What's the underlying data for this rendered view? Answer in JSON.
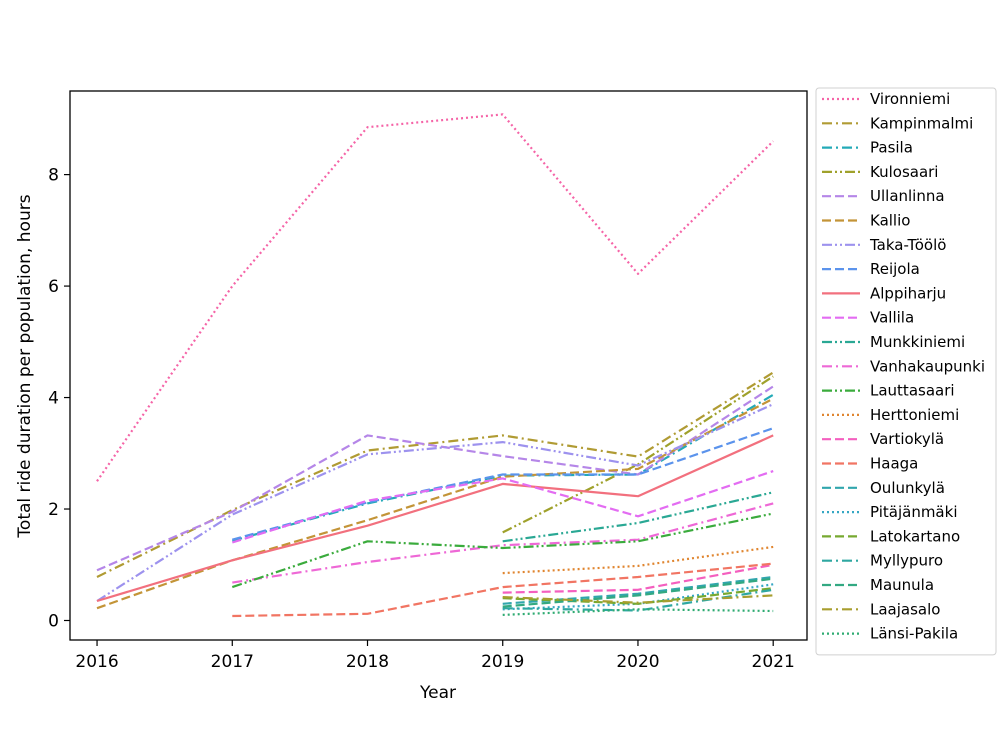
{
  "chart_data": {
    "type": "line",
    "title": "",
    "xlabel": "Year",
    "ylabel": "Total ride duration per population, hours",
    "x": [
      2016,
      2017,
      2018,
      2019,
      2020,
      2021
    ],
    "xlim": [
      2015.8,
      2021.25
    ],
    "ylim": [
      -0.35,
      9.5
    ],
    "yticks": [
      0,
      2,
      4,
      6,
      8
    ],
    "grid": false,
    "legend_position": "right-outside",
    "series": [
      {
        "name": "Vironniemi",
        "color": "#f564a7",
        "dash": "dotted",
        "values": [
          2.5,
          6.0,
          8.85,
          9.08,
          6.22,
          8.6
        ]
      },
      {
        "name": "Kampinmalmi",
        "color": "#b09b33",
        "dash": "dashdot",
        "values": [
          0.78,
          1.98,
          3.05,
          3.32,
          2.94,
          4.45
        ]
      },
      {
        "name": "Pasila",
        "color": "#23aab7",
        "dash": "dashdot",
        "values": [
          null,
          1.43,
          2.1,
          2.6,
          2.62,
          4.05
        ]
      },
      {
        "name": "Kulosaari",
        "color": "#9fa12b",
        "dash": "dashdotdot",
        "values": [
          null,
          null,
          null,
          1.58,
          2.8,
          4.38
        ]
      },
      {
        "name": "Ullanlinna",
        "color": "#b586e8",
        "dash": "dashed",
        "values": [
          0.9,
          1.95,
          3.32,
          2.95,
          2.62,
          4.2
        ]
      },
      {
        "name": "Kallio",
        "color": "#c39437",
        "dash": "dashed",
        "values": [
          0.22,
          1.08,
          1.8,
          2.58,
          2.72,
          3.98
        ]
      },
      {
        "name": "Taka-Töölö",
        "color": "#9d92ee",
        "dash": "dashdotdot",
        "values": [
          0.35,
          1.9,
          2.98,
          3.2,
          2.78,
          3.88
        ]
      },
      {
        "name": "Reijola",
        "color": "#5b93ec",
        "dash": "dashed",
        "values": [
          null,
          1.45,
          2.12,
          2.62,
          2.62,
          3.45
        ]
      },
      {
        "name": "Alppiharju",
        "color": "#f2707e",
        "dash": "solid",
        "values": [
          0.35,
          1.08,
          1.7,
          2.45,
          2.23,
          3.32
        ]
      },
      {
        "name": "Vallila",
        "color": "#e36cf2",
        "dash": "dashed",
        "values": [
          null,
          1.4,
          2.15,
          2.55,
          1.87,
          2.68
        ]
      },
      {
        "name": "Munkkiniemi",
        "color": "#2aa894",
        "dash": "dashdotdot",
        "values": [
          null,
          null,
          null,
          1.42,
          1.75,
          2.3
        ]
      },
      {
        "name": "Vanhakaupunki",
        "color": "#ee68d6",
        "dash": "dashdot",
        "values": [
          null,
          0.68,
          1.05,
          1.35,
          1.45,
          2.1
        ]
      },
      {
        "name": "Lauttasaari",
        "color": "#3aab3c",
        "dash": "dashdotdot",
        "values": [
          null,
          0.6,
          1.42,
          1.3,
          1.42,
          1.92
        ]
      },
      {
        "name": "Herttoniemi",
        "color": "#e0852f",
        "dash": "dotted",
        "values": [
          null,
          null,
          null,
          0.85,
          0.98,
          1.32
        ]
      },
      {
        "name": "Vartiokylä",
        "color": "#f45fbf",
        "dash": "dashed",
        "values": [
          null,
          null,
          null,
          0.5,
          0.55,
          1.0
        ]
      },
      {
        "name": "Haaga",
        "color": "#f17563",
        "dash": "dashed",
        "values": [
          null,
          0.08,
          0.12,
          0.6,
          0.78,
          1.02
        ]
      },
      {
        "name": "Oulunkylä",
        "color": "#31a6ad",
        "dash": "dashed",
        "values": [
          null,
          null,
          null,
          0.3,
          0.48,
          0.78
        ]
      },
      {
        "name": "Pitäjänmäki",
        "color": "#35a7c4",
        "dash": "dotted",
        "values": [
          null,
          null,
          null,
          0.2,
          0.3,
          0.65
        ]
      },
      {
        "name": "Latokartano",
        "color": "#77a930",
        "dash": "dashed",
        "values": [
          null,
          null,
          null,
          0.4,
          0.3,
          0.58
        ]
      },
      {
        "name": "Myllypuro",
        "color": "#2ea7a1",
        "dash": "dashdot",
        "values": [
          null,
          null,
          null,
          0.22,
          0.18,
          0.55
        ]
      },
      {
        "name": "Maunula",
        "color": "#33a982",
        "dash": "dashed",
        "values": [
          null,
          null,
          null,
          0.25,
          0.45,
          0.75
        ]
      },
      {
        "name": "Laajasalo",
        "color": "#a89e2f",
        "dash": "dashdot",
        "values": [
          null,
          null,
          null,
          0.42,
          0.32,
          0.45
        ]
      },
      {
        "name": "Länsi-Pakila",
        "color": "#2fab72",
        "dash": "dotted",
        "values": [
          null,
          null,
          null,
          0.1,
          0.2,
          0.17
        ]
      }
    ]
  }
}
